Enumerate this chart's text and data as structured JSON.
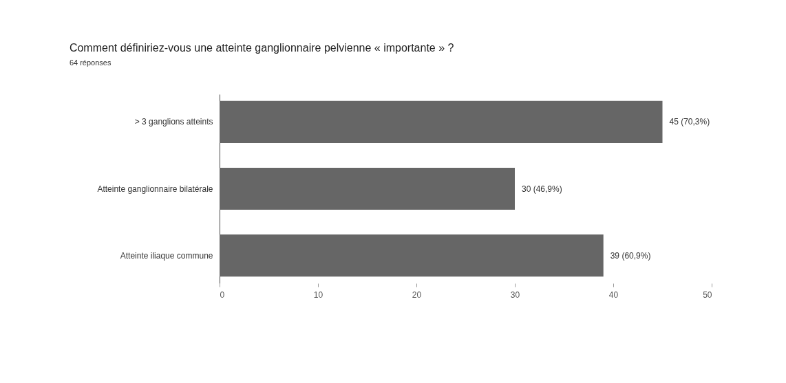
{
  "chart_data": {
    "type": "bar",
    "orientation": "horizontal",
    "title": "Comment définiriez-vous une atteinte ganglionnaire pelvienne « importante » ?",
    "subtitle": "64 réponses",
    "categories": [
      "> 3 ganglions atteints",
      "Atteinte ganglionnaire bilatérale",
      "Atteinte iliaque commune"
    ],
    "values": [
      45,
      30,
      39
    ],
    "value_labels": [
      "45 (70,3%)",
      "30 (46,9%)",
      "39 (60,9%)"
    ],
    "color": "#666666",
    "xlim": [
      0,
      50
    ],
    "xticks": [
      0,
      10,
      20,
      30,
      40,
      50
    ],
    "grid": false
  }
}
